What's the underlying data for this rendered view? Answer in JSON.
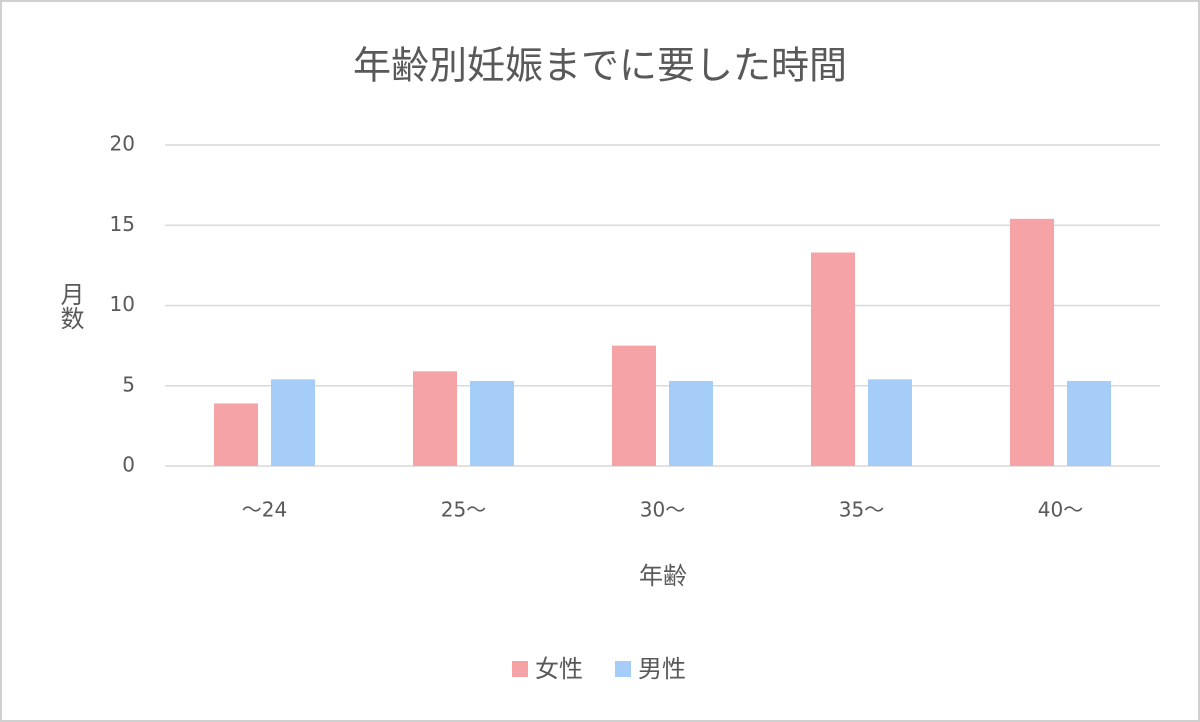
{
  "chart_data": {
    "type": "bar",
    "title": "年齢別妊娠までに要した時間",
    "x_label": "年齢",
    "y_label": "月数",
    "categories": [
      "～24",
      "25～",
      "30～",
      "35～",
      "40～"
    ],
    "series": [
      {
        "name": "女性",
        "color": "#f5a3a6",
        "values": [
          3.9,
          5.9,
          7.5,
          13.3,
          15.4
        ]
      },
      {
        "name": "男性",
        "color": "#a6cdf7",
        "values": [
          5.4,
          5.3,
          5.3,
          5.4,
          5.3
        ]
      }
    ],
    "ylim": [
      0,
      20
    ],
    "yticks": [
      0,
      5,
      10,
      15,
      20
    ],
    "grid": true,
    "legend": "bottom"
  }
}
